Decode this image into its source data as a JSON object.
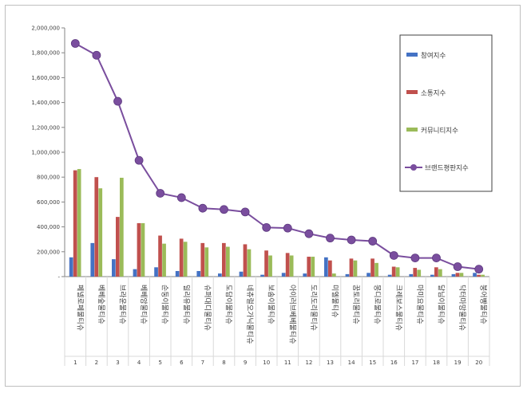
{
  "chart_data": {
    "type": "bar",
    "categories": [
      "페넬로페물티슈",
      "베베숲물티슈",
      "브라운물티슈",
      "베베앙물티슈",
      "순둥이물티슈",
      "밀리유물티슈",
      "슈퍼대디물티슈",
      "도담이물티슈",
      "네츄럴오가닉물티슈",
      "보솜이물티슈",
      "아이러브베베물티슈",
      "도리도리물티슈",
      "미엘물티슈",
      "꿈토리물티슈",
      "몽디로물티슈",
      "크레보스물티슈",
      "마미요물티슈",
      "달님이물티슈",
      "닥터마망물티슈",
      "붕어빵물티슈"
    ],
    "ranks": [
      "1",
      "2",
      "3",
      "4",
      "5",
      "6",
      "7",
      "8",
      "9",
      "10",
      "11",
      "12",
      "13",
      "14",
      "15",
      "16",
      "17",
      "18",
      "19",
      "20"
    ],
    "series": [
      {
        "name": "참여지수",
        "type": "bar",
        "color": "#4472C4",
        "values": [
          155000,
          270000,
          140000,
          60000,
          75000,
          45000,
          45000,
          25000,
          40000,
          15000,
          30000,
          25000,
          155000,
          20000,
          30000,
          15000,
          20000,
          15000,
          20000,
          30000
        ]
      },
      {
        "name": "소통지수",
        "type": "bar",
        "color": "#C0504D",
        "values": [
          855000,
          800000,
          480000,
          430000,
          330000,
          305000,
          270000,
          270000,
          260000,
          210000,
          190000,
          160000,
          130000,
          145000,
          145000,
          80000,
          70000,
          75000,
          30000,
          15000
        ]
      },
      {
        "name": "커뮤니티지수",
        "type": "bar",
        "color": "#9BBB59",
        "values": [
          865000,
          710000,
          795000,
          430000,
          265000,
          280000,
          235000,
          240000,
          220000,
          170000,
          170000,
          160000,
          25000,
          130000,
          110000,
          75000,
          55000,
          60000,
          30000,
          15000
        ]
      },
      {
        "name": "브랜드평판지수",
        "type": "line",
        "color": "#7A4E9E",
        "values": [
          1875000,
          1780000,
          1410000,
          935000,
          670000,
          635000,
          550000,
          540000,
          520000,
          395000,
          390000,
          345000,
          310000,
          295000,
          285000,
          170000,
          150000,
          150000,
          80000,
          60000
        ]
      }
    ],
    "yticks": [
      "-",
      "200,000",
      "400,000",
      "600,000",
      "800,000",
      "1,000,000",
      "1,200,000",
      "1,400,000",
      "1,600,000",
      "1,800,000",
      "2,000,000"
    ],
    "ylim": [
      0,
      2000000
    ],
    "grid": false,
    "legend": "right"
  }
}
